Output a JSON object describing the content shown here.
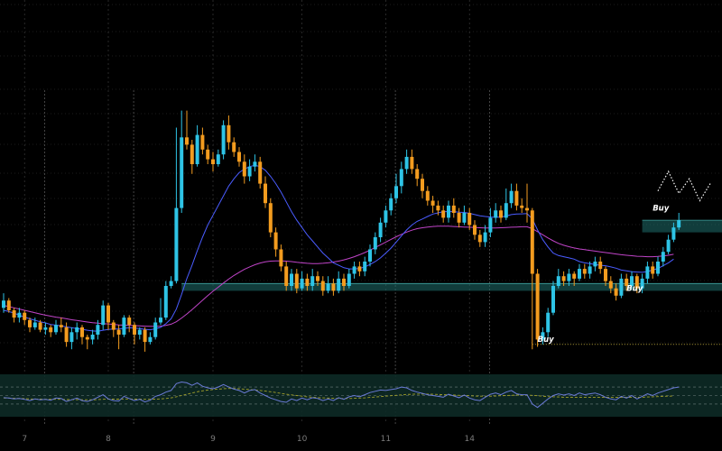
{
  "chart_data": {
    "type": "candlestick",
    "colors": {
      "background": "#000000",
      "up": "#2ec4e6",
      "down": "#f39c1f",
      "ma_fast": "#4a5cff",
      "ma_slow": "#c044c8",
      "zone": "#1f6f6e",
      "grid": "#3a3a3a",
      "rsi_line": "#6a7ad6",
      "rsi_ma": "#a3a12a",
      "buy_level": "#b8a33a",
      "projection": "#ffffff"
    },
    "grid": true,
    "price_range": [
      0,
      110
    ],
    "x_ticks": [
      {
        "label": "7",
        "t": 4
      },
      {
        "label": "8",
        "t": 20
      },
      {
        "label": "9",
        "t": 40
      },
      {
        "label": "10",
        "t": 57
      },
      {
        "label": "11",
        "t": 73
      },
      {
        "label": "14",
        "t": 89
      }
    ],
    "day_separators": [
      7.5,
      24.5,
      74.5,
      92.5
    ],
    "candles": [
      [
        21,
        24,
        27,
        19
      ],
      [
        24,
        20,
        25,
        19
      ],
      [
        20,
        17,
        21,
        15
      ],
      [
        17,
        19,
        21,
        15
      ],
      [
        19,
        16,
        20,
        14
      ],
      [
        16,
        13,
        17,
        11
      ],
      [
        13,
        15,
        17,
        12
      ],
      [
        15,
        12,
        16,
        11
      ],
      [
        12,
        13,
        15,
        10
      ],
      [
        13,
        11,
        14,
        9
      ],
      [
        11,
        14,
        16,
        10
      ],
      [
        14,
        13,
        17,
        11
      ],
      [
        13,
        7,
        15,
        5
      ],
      [
        7,
        11,
        13,
        4
      ],
      [
        11,
        13,
        15,
        8
      ],
      [
        13,
        9,
        14,
        6
      ],
      [
        9,
        8,
        10,
        4
      ],
      [
        8,
        10,
        12,
        6
      ],
      [
        10,
        14,
        16,
        8
      ],
      [
        14,
        22,
        24,
        12
      ],
      [
        22,
        15,
        23,
        12
      ],
      [
        15,
        12,
        16,
        9
      ],
      [
        12,
        10,
        14,
        4
      ],
      [
        10,
        17,
        18,
        9
      ],
      [
        17,
        14,
        18,
        11
      ],
      [
        14,
        10,
        15,
        6
      ],
      [
        10,
        12,
        13,
        8
      ],
      [
        12,
        7,
        13,
        3
      ],
      [
        7,
        9,
        11,
        6
      ],
      [
        9,
        15,
        17,
        8
      ],
      [
        15,
        17,
        25,
        14
      ],
      [
        17,
        30,
        32,
        16
      ],
      [
        30,
        32,
        34,
        29
      ],
      [
        32,
        62,
        95,
        31
      ],
      [
        62,
        91,
        102,
        60
      ],
      [
        91,
        88,
        102,
        86
      ],
      [
        88,
        80,
        90,
        76
      ],
      [
        80,
        92,
        96,
        79
      ],
      [
        92,
        86,
        95,
        84
      ],
      [
        86,
        82,
        88,
        80
      ],
      [
        82,
        80,
        85,
        77
      ],
      [
        80,
        84,
        86,
        79
      ],
      [
        84,
        96,
        98,
        82
      ],
      [
        96,
        89,
        100,
        86
      ],
      [
        89,
        85,
        91,
        83
      ],
      [
        85,
        81,
        87,
        79
      ],
      [
        81,
        75,
        84,
        72
      ],
      [
        75,
        79,
        82,
        73
      ],
      [
        79,
        81,
        84,
        77
      ],
      [
        81,
        72,
        83,
        70
      ],
      [
        72,
        64,
        75,
        62
      ],
      [
        64,
        52,
        66,
        50
      ],
      [
        52,
        45,
        54,
        42
      ],
      [
        45,
        38,
        47,
        36
      ],
      [
        38,
        30,
        40,
        28
      ],
      [
        30,
        35,
        37,
        28
      ],
      [
        35,
        29,
        37,
        27
      ],
      [
        29,
        33,
        36,
        28
      ],
      [
        33,
        30,
        35,
        28
      ],
      [
        30,
        34,
        37,
        28
      ],
      [
        34,
        32,
        36,
        30
      ],
      [
        32,
        28,
        34,
        26
      ],
      [
        28,
        31,
        34,
        27
      ],
      [
        31,
        28,
        33,
        26
      ],
      [
        28,
        33,
        36,
        27
      ],
      [
        33,
        30,
        35,
        28
      ],
      [
        30,
        35,
        37,
        29
      ],
      [
        35,
        38,
        40,
        33
      ],
      [
        38,
        36,
        40,
        34
      ],
      [
        36,
        40,
        42,
        34
      ],
      [
        40,
        45,
        47,
        38
      ],
      [
        45,
        50,
        52,
        43
      ],
      [
        50,
        56,
        58,
        48
      ],
      [
        56,
        61,
        63,
        54
      ],
      [
        61,
        66,
        68,
        59
      ],
      [
        66,
        71,
        76,
        64
      ],
      [
        71,
        78,
        81,
        68
      ],
      [
        78,
        83,
        86,
        76
      ],
      [
        83,
        78,
        86,
        76
      ],
      [
        78,
        74,
        80,
        71
      ],
      [
        74,
        69,
        76,
        66
      ],
      [
        69,
        65,
        71,
        63
      ],
      [
        65,
        63,
        67,
        60
      ],
      [
        63,
        61,
        65,
        59
      ],
      [
        61,
        58,
        63,
        56
      ],
      [
        58,
        63,
        65,
        56
      ],
      [
        63,
        60,
        66,
        58
      ],
      [
        60,
        56,
        62,
        54
      ],
      [
        56,
        60,
        63,
        55
      ],
      [
        60,
        55,
        62,
        53
      ],
      [
        55,
        51,
        57,
        49
      ],
      [
        51,
        48,
        53,
        46
      ],
      [
        48,
        52,
        55,
        46
      ],
      [
        52,
        58,
        62,
        50
      ],
      [
        58,
        61,
        64,
        56
      ],
      [
        61,
        58,
        63,
        56
      ],
      [
        58,
        64,
        70,
        57
      ],
      [
        64,
        69,
        72,
        62
      ],
      [
        69,
        63,
        72,
        61
      ],
      [
        63,
        62,
        66,
        60
      ],
      [
        62,
        61,
        72,
        56
      ],
      [
        61,
        35,
        62,
        4
      ],
      [
        35,
        8,
        37,
        5
      ],
      [
        8,
        11,
        13,
        6
      ],
      [
        11,
        19,
        21,
        9
      ],
      [
        19,
        30,
        32,
        18
      ],
      [
        30,
        34,
        37,
        29
      ],
      [
        34,
        32,
        36,
        30
      ],
      [
        32,
        35,
        37,
        30
      ],
      [
        35,
        33,
        36,
        30
      ],
      [
        33,
        37,
        39,
        32
      ],
      [
        37,
        35,
        39,
        33
      ],
      [
        35,
        38,
        40,
        33
      ],
      [
        38,
        40,
        42,
        36
      ],
      [
        40,
        37,
        42,
        35
      ],
      [
        37,
        32,
        38,
        30
      ],
      [
        32,
        29,
        34,
        27
      ],
      [
        29,
        26,
        31,
        24
      ],
      [
        26,
        33,
        35,
        25
      ],
      [
        33,
        30,
        35,
        28
      ],
      [
        30,
        34,
        36,
        29
      ],
      [
        34,
        29,
        35,
        27
      ],
      [
        29,
        33,
        35,
        27
      ],
      [
        33,
        38,
        40,
        31
      ],
      [
        38,
        35,
        40,
        33
      ],
      [
        35,
        40,
        42,
        34
      ],
      [
        40,
        44,
        46,
        38
      ],
      [
        44,
        49,
        51,
        43
      ],
      [
        49,
        54,
        56,
        48
      ],
      [
        54,
        57,
        60,
        53
      ]
    ],
    "ma_fast": [
      20,
      19.5,
      18.8,
      18,
      17.2,
      16.5,
      15.9,
      15.3,
      14.8,
      14.2,
      13.9,
      13.6,
      13.2,
      12.8,
      12.5,
      12.2,
      11.8,
      11.5,
      11.4,
      11.8,
      12.1,
      12.3,
      12.3,
      12.6,
      12.8,
      12.7,
      12.5,
      12.2,
      12,
      12.4,
      13,
      14.5,
      16.5,
      20.5,
      26.5,
      33,
      38.5,
      44.5,
      50,
      55,
      59,
      63,
      67,
      71,
      74,
      76.5,
      78,
      79,
      79.5,
      79,
      77.5,
      75,
      72,
      68.5,
      64.5,
      60.5,
      57,
      54,
      51,
      48.5,
      46,
      43.5,
      41.5,
      39.5,
      38.5,
      37.5,
      37,
      37,
      37.2,
      37.8,
      38.8,
      40,
      41.5,
      43.5,
      45.5,
      48,
      50.5,
      53,
      55,
      56.5,
      57.5,
      58.5,
      59.5,
      60,
      60.5,
      60.5,
      60.5,
      60.3,
      60.2,
      59.8,
      59.3,
      58.8,
      58.5,
      58.3,
      58.2,
      58.3,
      58.7,
      59.3,
      59.5,
      59.6,
      59.7,
      57.5,
      53,
      49,
      46,
      43.5,
      42.5,
      42,
      41.5,
      41,
      40,
      39.5,
      39.2,
      38.8,
      38.5,
      38.3,
      37.8,
      37.3,
      36.5,
      36.2,
      35.8,
      35.7,
      35.6,
      35.9,
      36.5,
      37.2,
      38.3,
      39.5,
      41
    ],
    "ma_slow": [
      22,
      21.5,
      21,
      20.5,
      20,
      19.5,
      19,
      18.5,
      18,
      17.6,
      17.2,
      16.9,
      16.5,
      16.1,
      15.8,
      15.5,
      15.2,
      14.9,
      14.7,
      14.5,
      14.4,
      14.2,
      14,
      13.9,
      13.8,
      13.7,
      13.6,
      13.5,
      13.4,
      13.4,
      13.5,
      13.8,
      14.3,
      15.3,
      16.8,
      18.5,
      20.3,
      22.2,
      24.1,
      26,
      27.8,
      29.5,
      31.2,
      32.8,
      34.3,
      35.6,
      36.8,
      37.8,
      38.7,
      39.4,
      39.9,
      40.2,
      40.3,
      40.3,
      40.2,
      40,
      39.7,
      39.5,
      39.3,
      39.2,
      39.2,
      39.3,
      39.5,
      39.8,
      40.2,
      40.7,
      41.3,
      42,
      42.8,
      43.7,
      44.7,
      45.8,
      46.9,
      48,
      49.1,
      50.2,
      51.2,
      52.1,
      52.9,
      53.5,
      53.9,
      54.2,
      54.4,
      54.5,
      54.5,
      54.5,
      54.4,
      54.3,
      54.2,
      54.1,
      54,
      53.9,
      53.8,
      53.8,
      53.8,
      53.9,
      54,
      54.1,
      54.2,
      54.3,
      54.3,
      53.5,
      52.3,
      51,
      49.7,
      48.5,
      47.5,
      46.7,
      46.1,
      45.6,
      45.2,
      44.9,
      44.6,
      44.3,
      44,
      43.7,
      43.4,
      43.1,
      42.8,
      42.6,
      42.4,
      42.2,
      42.1,
      42,
      42,
      42.1,
      42.3,
      42.6,
      43
    ],
    "rsi": [
      45,
      44,
      42,
      43,
      41,
      38,
      42,
      40,
      41,
      39,
      44,
      43,
      36,
      40,
      44,
      38,
      36,
      40,
      46,
      52,
      42,
      38,
      37,
      48,
      43,
      38,
      41,
      35,
      39,
      48,
      52,
      58,
      62,
      78,
      82,
      80,
      74,
      80,
      72,
      68,
      66,
      70,
      76,
      70,
      65,
      62,
      56,
      62,
      64,
      56,
      50,
      44,
      40,
      36,
      34,
      42,
      38,
      44,
      40,
      45,
      43,
      38,
      42,
      38,
      45,
      41,
      47,
      50,
      47,
      52,
      57,
      60,
      63,
      62,
      64,
      66,
      70,
      68,
      62,
      58,
      55,
      52,
      50,
      48,
      46,
      53,
      49,
      45,
      51,
      44,
      40,
      38,
      46,
      53,
      56,
      52,
      58,
      62,
      54,
      52,
      52,
      30,
      22,
      32,
      42,
      50,
      54,
      51,
      54,
      50,
      56,
      52,
      54,
      56,
      52,
      46,
      42,
      40,
      48,
      44,
      50,
      42,
      48,
      54,
      50,
      56,
      60,
      64,
      68,
      70
    ],
    "rsi_ma": [
      44,
      44,
      43.5,
      43,
      42.5,
      42,
      41.5,
      41.5,
      41,
      41,
      41,
      41,
      40.5,
      40.5,
      40.5,
      40,
      40,
      40,
      40.5,
      41,
      41.5,
      41.5,
      41.5,
      42,
      42,
      41.5,
      41.5,
      41,
      41,
      41.5,
      42,
      43,
      44.5,
      47,
      50,
      53,
      56,
      59,
      61,
      63,
      64,
      65,
      66,
      66.5,
      66.5,
      66,
      65,
      64,
      63,
      62,
      60.5,
      59,
      57,
      55,
      53,
      51.5,
      50,
      48.5,
      47,
      46,
      45,
      44.5,
      44,
      43.5,
      43,
      43,
      43,
      43.5,
      44,
      44.5,
      45.5,
      46.5,
      47.5,
      48.5,
      49.5,
      50.5,
      51.5,
      52.5,
      53,
      53.5,
      53.5,
      53.5,
      53,
      52.5,
      52,
      51.5,
      51,
      50.5,
      50,
      49.5,
      49,
      48.5,
      48.5,
      48.5,
      49,
      49.5,
      50,
      50.5,
      51,
      51,
      51,
      50.5,
      49.5,
      48.5,
      47.5,
      47,
      46.5,
      46,
      46,
      46,
      46,
      46,
      46,
      46,
      46,
      46,
      45.5,
      45.5,
      45.5,
      45.5,
      45.5,
      45.5,
      46,
      46.5,
      47,
      47.5,
      48,
      48.5,
      49
    ],
    "zones": [
      {
        "from_t": 34,
        "top": 31,
        "bottom": 28
      },
      {
        "from_t": 122,
        "top": 57,
        "bottom": 52
      }
    ],
    "buy_level": {
      "from_t": 101,
      "y": 6
    },
    "signals": [
      {
        "label": "Buy",
        "t": 102,
        "y": 7
      },
      {
        "label": "Buy",
        "t": 119,
        "y": 28
      },
      {
        "label": "Buy",
        "t": 124,
        "y": 61
      }
    ],
    "projection": [
      [
        125,
        69
      ],
      [
        127,
        77
      ],
      [
        129,
        68
      ],
      [
        131,
        74
      ],
      [
        133,
        65
      ],
      [
        135,
        72
      ]
    ],
    "rsi_levels": [
      70,
      50,
      30
    ]
  }
}
